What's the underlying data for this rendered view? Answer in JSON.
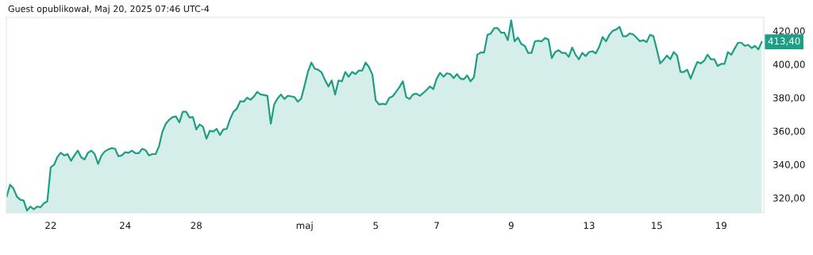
{
  "chart_data": {
    "type": "area",
    "annotations": [
      "Guest opublikował, Maj 20, 2025 07:46 UTC-4",
      "413,40"
    ],
    "categories": [
      null,
      null,
      null,
      null,
      null,
      null,
      null,
      null,
      null,
      null,
      null,
      null,
      null,
      "22",
      null,
      null,
      null,
      null,
      null,
      null,
      null,
      null,
      null,
      null,
      null,
      null,
      null,
      null,
      null,
      null,
      null,
      null,
      null,
      null,
      null,
      "24",
      null,
      null,
      null,
      null,
      null,
      null,
      null,
      null,
      null,
      null,
      null,
      null,
      null,
      null,
      null,
      null,
      null,
      null,
      null,
      null,
      "28",
      null,
      null,
      null,
      null,
      null,
      null,
      null,
      null,
      null,
      null,
      null,
      null,
      null,
      null,
      null,
      null,
      null,
      null,
      null,
      null,
      null,
      null,
      null,
      null,
      null,
      null,
      null,
      null,
      null,
      null,
      null,
      "maj",
      null,
      null,
      null,
      null,
      null,
      null,
      null,
      null,
      null,
      null,
      null,
      null,
      null,
      null,
      null,
      null,
      null,
      null,
      null,
      null,
      "5",
      null,
      null,
      null,
      null,
      null,
      null,
      null,
      null,
      null,
      null,
      null,
      null,
      null,
      null,
      null,
      null,
      null,
      "7",
      null,
      null,
      null,
      null,
      null,
      null,
      null,
      null,
      null,
      null,
      null,
      null,
      null,
      null,
      null,
      null,
      null,
      null,
      null,
      null,
      null,
      "9",
      null,
      null,
      null,
      null,
      null,
      null,
      null,
      null,
      null,
      null,
      null,
      null,
      null,
      null,
      null,
      null,
      null,
      null,
      null,
      null,
      null,
      null,
      "13",
      null,
      null,
      null,
      null,
      null,
      null,
      null,
      null,
      null,
      null,
      null,
      null,
      null,
      null,
      null,
      null,
      null,
      null,
      null,
      "15",
      null,
      null,
      null,
      null,
      null,
      null,
      null,
      null,
      null,
      null,
      null,
      null,
      null,
      null,
      null,
      null,
      null,
      null,
      "19",
      null,
      null,
      null,
      null,
      null,
      null,
      null,
      null,
      null,
      null,
      null,
      null
    ],
    "ylim": [
      311,
      428
    ],
    "yticks": [
      {
        "value": 320,
        "label": "320,00"
      },
      {
        "value": 340,
        "label": "340,00"
      },
      {
        "value": 360,
        "label": "360,00"
      },
      {
        "value": 380,
        "label": "380,00"
      },
      {
        "value": 400,
        "label": "400,00"
      },
      {
        "value": 420,
        "label": "420,00"
      }
    ],
    "series": [
      {
        "color": "#1e9e84",
        "values": [
          320.8,
          327.9,
          325.6,
          320.8,
          318.9,
          318.4,
          312.4,
          314.8,
          313.2,
          314.8,
          314.4,
          316.8,
          317.9,
          338.3,
          339.8,
          344.6,
          347.0,
          345.4,
          346.2,
          342.2,
          345.4,
          348.3,
          344.3,
          343.0,
          347.0,
          348.3,
          346.2,
          340.3,
          345.4,
          347.8,
          349.0,
          349.8,
          349.4,
          344.9,
          345.4,
          347.3,
          347.0,
          348.3,
          346.7,
          346.7,
          349.4,
          348.6,
          345.4,
          346.2,
          346.2,
          351.0,
          359.7,
          364.4,
          366.8,
          368.4,
          368.7,
          365.2,
          371.6,
          371.6,
          368.1,
          368.4,
          361.0,
          364.0,
          362.5,
          355.4,
          360.2,
          359.7,
          361.3,
          357.6,
          361.0,
          361.3,
          367.3,
          371.6,
          373.5,
          377.9,
          377.6,
          380.0,
          378.7,
          380.6,
          383.5,
          381.9,
          381.6,
          381.1,
          364.4,
          376.0,
          379.5,
          381.9,
          379.2,
          381.1,
          380.8,
          380.3,
          377.6,
          379.5,
          387.5,
          395.7,
          401.0,
          397.3,
          396.7,
          395.1,
          390.6,
          386.7,
          390.3,
          381.9,
          390.3,
          389.8,
          395.4,
          392.5,
          395.4,
          394.1,
          396.2,
          396.2,
          401.0,
          398.3,
          393.8,
          378.3,
          375.9,
          376.3,
          376.0,
          379.8,
          380.8,
          383.5,
          386.3,
          389.8,
          380.3,
          379.2,
          381.9,
          382.4,
          381.1,
          382.7,
          384.6,
          386.7,
          385.1,
          391.4,
          394.9,
          392.5,
          394.6,
          394.1,
          391.7,
          394.1,
          391.4,
          391.0,
          393.3,
          389.8,
          392.2,
          405.7,
          407.0,
          407.0,
          417.6,
          418.4,
          421.6,
          421.6,
          418.9,
          418.9,
          414.4,
          426.3,
          413.7,
          416.0,
          412.1,
          411.0,
          406.8,
          406.8,
          413.7,
          414.1,
          413.7,
          415.7,
          414.8,
          403.7,
          407.3,
          408.4,
          406.8,
          406.8,
          404.4,
          410.0,
          405.7,
          403.0,
          406.8,
          404.9,
          407.3,
          407.8,
          406.5,
          410.5,
          416.3,
          413.7,
          417.6,
          420.0,
          420.8,
          422.4,
          416.8,
          416.8,
          418.4,
          417.9,
          416.0,
          413.7,
          414.4,
          413.3,
          417.6,
          416.8,
          408.9,
          400.5,
          402.6,
          405.2,
          403.0,
          407.3,
          405.2,
          395.4,
          395.4,
          396.7,
          391.4,
          396.7,
          401.4,
          400.5,
          402.1,
          405.7,
          403.0,
          403.0,
          398.9,
          400.2,
          400.2,
          407.3,
          405.7,
          409.4,
          412.9,
          412.9,
          411.0,
          411.6,
          409.7,
          411.0,
          408.9,
          413.4
        ]
      }
    ]
  }
}
